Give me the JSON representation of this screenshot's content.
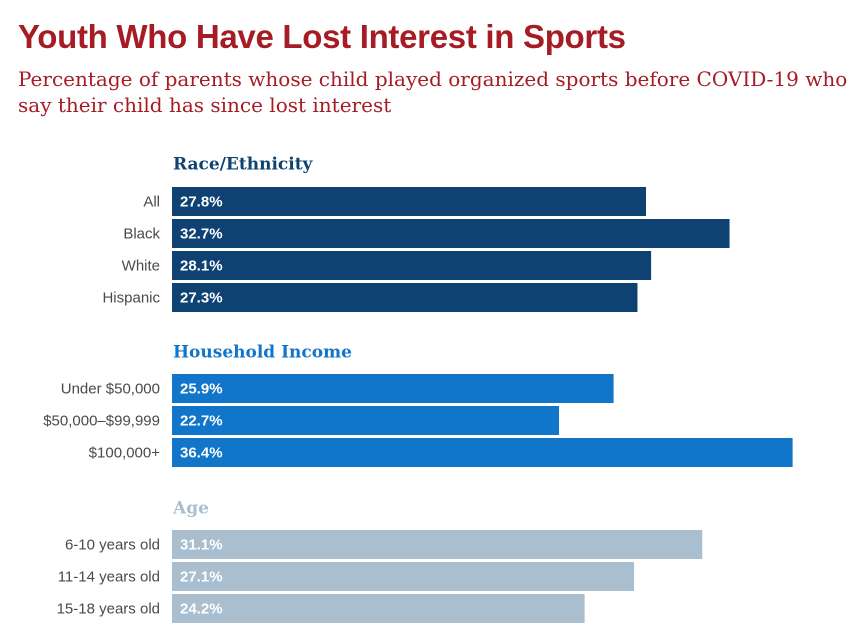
{
  "title": "Youth Who Have Lost Interest in Sports",
  "subtitle": "Percentage of parents whose child played organized sports before COVID-19 who say their child has since lost interest",
  "chart_data": {
    "type": "bar",
    "orientation": "horizontal",
    "value_suffix": "%",
    "xlim": [
      0,
      40
    ],
    "groups": [
      {
        "name": "Race/Ethnicity",
        "color": "#0d4273",
        "categories": [
          "All",
          "Black",
          "White",
          "Hispanic"
        ],
        "values": [
          27.8,
          32.7,
          28.1,
          27.3
        ]
      },
      {
        "name": "Household Income",
        "color": "#1175c9",
        "categories": [
          "Under $50,000",
          "$50,000–$99,999",
          "$100,000+"
        ],
        "values": [
          25.9,
          22.7,
          36.4
        ]
      },
      {
        "name": "Age",
        "color": "#a9bfcf",
        "categories": [
          "6-10 years old",
          "11-14 years old",
          "15-18 years old"
        ],
        "values": [
          31.1,
          27.1,
          24.2
        ]
      }
    ]
  }
}
